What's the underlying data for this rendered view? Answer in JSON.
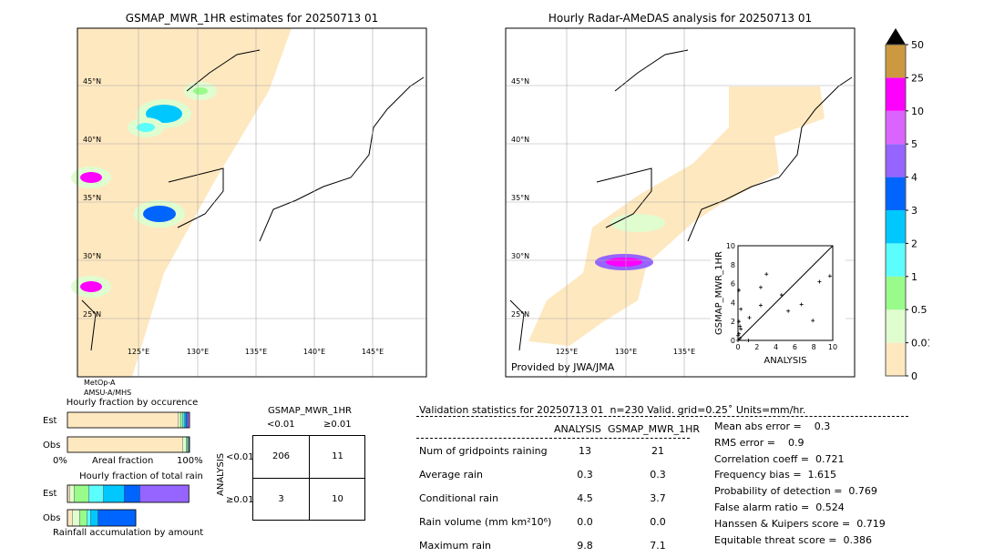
{
  "left_map": {
    "title": "GSMAP_MWR_1HR estimates for 20250713 01",
    "satellite_note": [
      "MetOp-A",
      "AMSU-A/MHS"
    ]
  },
  "right_map": {
    "title": "Hourly Radar-AMeDAS analysis for 20250713 01",
    "credit": "Provided by JWA/JMA"
  },
  "lat_labels": [
    "45°N",
    "40°N",
    "35°N",
    "30°N",
    "25°N"
  ],
  "lon_labels": [
    "125°E",
    "130°E",
    "135°E",
    "140°E",
    "145°E"
  ],
  "colorbar": {
    "ticks": [
      "0",
      "0.01",
      "0.5",
      "1",
      "2",
      "3",
      "4",
      "5",
      "10",
      "25",
      "50"
    ],
    "colors": [
      "#fee8c0",
      "#e0fdd0",
      "#98fb8a",
      "#5cfdfd",
      "#00c8fe",
      "#0064fe",
      "#9664fe",
      "#dc64fe",
      "#fe00fe",
      "#cc9940"
    ],
    "extend": "max"
  },
  "occurrence": {
    "title": "Hourly fraction by occurence",
    "est_label": "Est",
    "obs_label": "Obs",
    "xlabel": "Areal fraction",
    "x_min": "0%",
    "x_max": "100%",
    "est_fractions": [
      0.909,
      0.017,
      0.017,
      0.013,
      0.013,
      0.013,
      0.009,
      0.009
    ],
    "obs_fractions": [
      0.943,
      0.03,
      0.009,
      0.009,
      0.004,
      0.005
    ]
  },
  "total_rain": {
    "title": "Hourly fraction of total rain",
    "est_label": "Est",
    "obs_label": "Obs",
    "caption": "Rainfall accumulation by amount",
    "est_fractions": [
      0.02,
      0.035,
      0.12,
      0.12,
      0.17,
      0.13,
      0.4
    ],
    "obs_fractions": [
      0.04,
      0.06,
      0.06,
      0.03,
      0.06,
      0.31
    ]
  },
  "contingency": {
    "col_title": "GSMAP_MWR_1HR",
    "row_title": "ANALYSIS",
    "col_labels": [
      "<0.01",
      "≥0.01"
    ],
    "row_labels": [
      "<0.01",
      "≥0.01"
    ],
    "cells": [
      [
        "206",
        "11"
      ],
      [
        "3",
        "10"
      ]
    ]
  },
  "stats": {
    "header": "Validation statistics for 20250713 01  n=230 Valid. grid=0.25˚ Units=mm/hr.",
    "col_headers": [
      "ANALYSIS",
      "GSMAP_MWR_1HR"
    ],
    "rows": [
      {
        "label": "Num of gridpoints raining",
        "analysis": "13",
        "gsmap": "21"
      },
      {
        "label": "Average rain",
        "analysis": "0.3",
        "gsmap": "0.3"
      },
      {
        "label": "Conditional rain",
        "analysis": "4.5",
        "gsmap": "3.7"
      },
      {
        "label": "Rain volume (mm km²10⁶)",
        "analysis": "0.0",
        "gsmap": "0.0"
      },
      {
        "label": "Maximum rain",
        "analysis": "9.8",
        "gsmap": "7.1"
      }
    ],
    "scores": [
      "Mean abs error =    0.3",
      "RMS error =    0.9",
      "Correlation coeff =  0.721",
      "Frequency bias =  1.615",
      "Probability of detection =  0.769",
      "False alarm ratio =  0.524",
      "Hanssen & Kuipers score =  0.719",
      "Equitable threat score =  0.386"
    ]
  },
  "chart_data": {
    "type": "scatter",
    "xlabel": "ANALYSIS",
    "ylabel": "GSMAP_MWR_1HR",
    "xlim": [
      0,
      10
    ],
    "ylim": [
      0,
      10
    ],
    "ticks": [
      "0",
      "2",
      "4",
      "6",
      "8",
      "10"
    ],
    "points": [
      [
        0.1,
        5.3
      ],
      [
        0.3,
        3.3
      ],
      [
        1.2,
        2.4
      ],
      [
        2.4,
        5.6
      ],
      [
        2.4,
        3.7
      ],
      [
        3.0,
        7.0
      ],
      [
        4.6,
        4.8
      ],
      [
        5.3,
        3.1
      ],
      [
        6.7,
        3.8
      ],
      [
        7.9,
        2.1
      ],
      [
        8.6,
        6.2
      ],
      [
        9.7,
        6.8
      ],
      [
        1.1,
        0.0
      ],
      [
        0.1,
        2.0
      ],
      [
        0.2,
        1.5
      ],
      [
        0.3,
        1.2
      ],
      [
        0.0,
        0.5
      ],
      [
        0.1,
        0.7
      ],
      [
        0.2,
        0.2
      ],
      [
        0.0,
        0.0
      ]
    ]
  }
}
